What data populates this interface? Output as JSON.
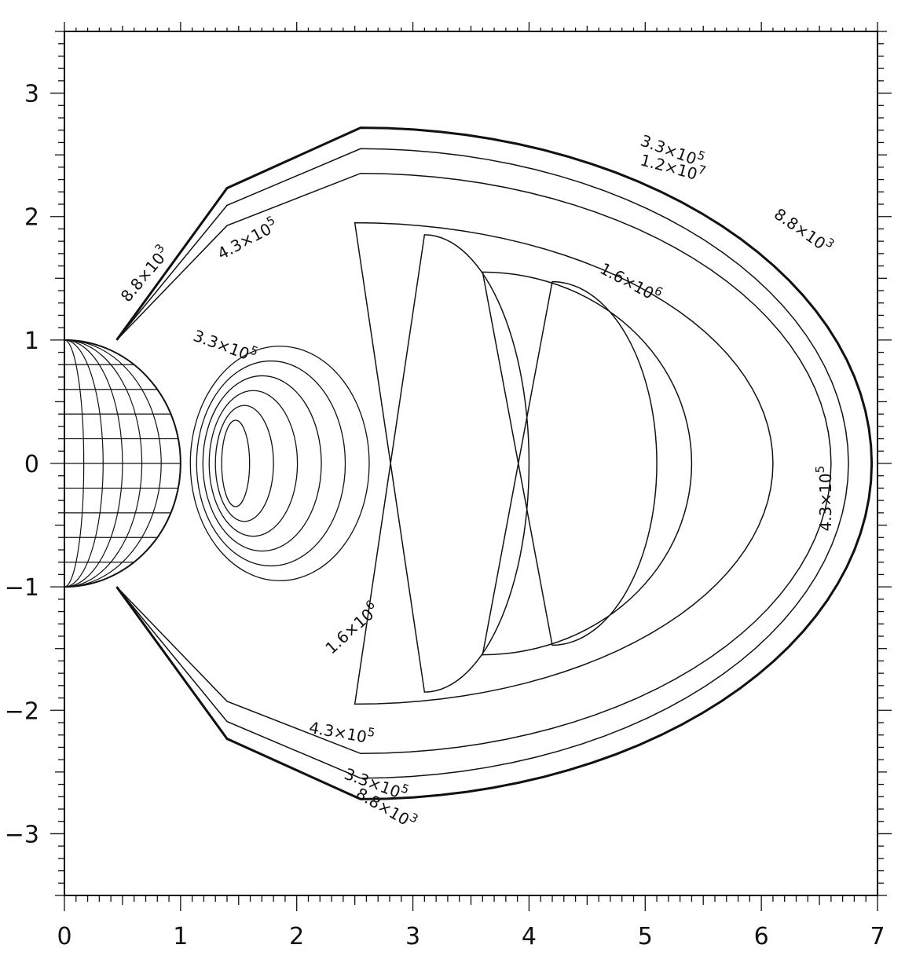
{
  "chart_data": {
    "type": "contour",
    "title": "",
    "xlabel": "",
    "ylabel": "",
    "xlim": [
      0,
      7
    ],
    "ylim": [
      -3.5,
      3.5
    ],
    "x_ticks": [
      0,
      1,
      2,
      3,
      4,
      5,
      6,
      7
    ],
    "x_tick_labels": [
      "0",
      "1",
      "2",
      "3",
      "4",
      "5",
      "6",
      "7"
    ],
    "y_ticks": [
      3,
      2,
      1,
      0,
      -1,
      -2,
      -3
    ],
    "y_tick_labels": [
      "3",
      "2",
      "1",
      "0",
      "−1",
      "−2",
      "−3"
    ],
    "grid": false,
    "sphere": {
      "center": [
        0,
        0
      ],
      "radius": 1.0
    },
    "contours": [
      {
        "label": "3.3×10^5",
        "shape": "outer",
        "xmax": 6.95,
        "ymax": 2.72
      },
      {
        "label": "1.2×10^7",
        "shape": "outer",
        "xmax": 6.75,
        "ymax": 2.55
      },
      {
        "label": "4.3×10^5",
        "shape": "outer",
        "xmax": 6.6,
        "ymax": 2.35
      },
      {
        "label": "1.6×10^6",
        "shape": "crescent",
        "xmax": 6.1,
        "ymax": 1.95
      },
      {
        "label": "",
        "shape": "crescent",
        "xmax": 5.4,
        "ymax": 1.55
      }
    ],
    "contour_labels": [
      {
        "text": "3.3×10",
        "exp": "5",
        "x": 4.95,
        "y": 2.58,
        "angle": 20
      },
      {
        "text": "1.2×10",
        "exp": "7",
        "x": 4.95,
        "y": 2.42,
        "angle": 15
      },
      {
        "text": "8.8×10",
        "exp": "3",
        "x": 6.1,
        "y": 2.0,
        "angle": 35
      },
      {
        "text": "4.3×10",
        "exp": "5",
        "x": 1.35,
        "y": 1.65,
        "angle": -28
      },
      {
        "text": "8.8×10",
        "exp": "3",
        "x": 0.55,
        "y": 1.3,
        "angle": -50
      },
      {
        "text": "3.3×10",
        "exp": "5",
        "x": 1.1,
        "y": 1.0,
        "angle": 20
      },
      {
        "text": "1.6×10",
        "exp": "6",
        "x": 4.6,
        "y": 1.55,
        "angle": 28
      },
      {
        "text": "4.3×10",
        "exp": "5",
        "x": 6.6,
        "y": -0.55,
        "angle": -90
      },
      {
        "text": "1.6×10",
        "exp": "6",
        "x": 2.3,
        "y": -1.55,
        "angle": -42
      },
      {
        "text": "4.3×10",
        "exp": "5",
        "x": 2.1,
        "y": -2.18,
        "angle": 10
      },
      {
        "text": "3.3×10",
        "exp": "5",
        "x": 2.4,
        "y": -2.55,
        "angle": 20
      },
      {
        "text": "8.8×10",
        "exp": "3",
        "x": 2.5,
        "y": -2.7,
        "angle": 30
      }
    ]
  }
}
